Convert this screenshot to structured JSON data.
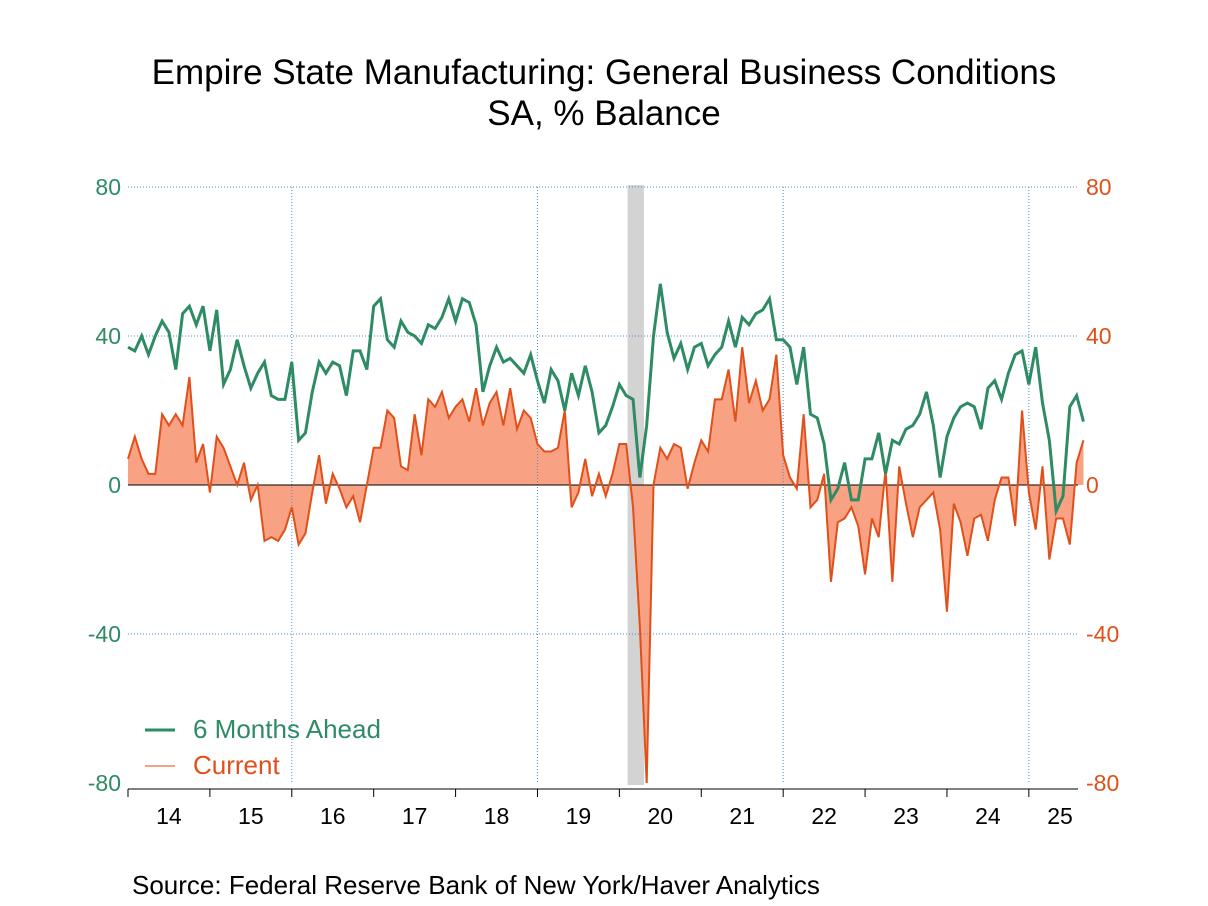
{
  "title": {
    "line1": "Empire State Manufacturing: General Business Conditions",
    "line2": "SA, % Balance"
  },
  "source": "Source:  Federal Reserve Bank of New York/Haver Analytics",
  "colors": {
    "six_months": "#2e8b64",
    "current_line": "#e0501a",
    "current_fill": "#f9a183",
    "recession": "#d3d3d3",
    "grid": "#4a8fd0",
    "left_axis_text": "#2e8b64",
    "right_axis_text": "#e0501a"
  },
  "chart_data": {
    "type": "line",
    "title": "Empire State Manufacturing: General Business Conditions",
    "subtitle": "SA, % Balance",
    "xlabel": "",
    "ylabel": "",
    "ylim": [
      -80,
      80
    ],
    "y_ticks_left": [
      "80",
      "40",
      "0",
      "-40",
      "-80"
    ],
    "y_ticks_right": [
      "80",
      "40",
      "0",
      "-40",
      "-80"
    ],
    "x_ticks": [
      "14",
      "15",
      "16",
      "17",
      "18",
      "19",
      "20",
      "21",
      "22",
      "23",
      "24",
      "25"
    ],
    "x_range": [
      2014.0,
      2025.6
    ],
    "frequency": "monthly",
    "start": "2014-01",
    "recession": {
      "start": 2020.1,
      "end": 2020.3
    },
    "legend": {
      "position": "bottom-left"
    },
    "series": [
      {
        "name": "6 Months Ahead",
        "style": "line",
        "values": [
          37,
          36,
          40,
          35,
          40,
          44,
          41,
          31,
          46,
          48,
          43,
          48,
          36,
          47,
          27,
          31,
          39,
          32,
          26,
          30,
          33,
          24,
          23,
          23,
          33,
          12,
          14,
          25,
          33,
          30,
          33,
          32,
          24,
          36,
          36,
          31,
          48,
          50,
          39,
          37,
          44,
          41,
          40,
          38,
          43,
          42,
          45,
          50,
          44,
          50,
          49,
          43,
          25,
          32,
          37,
          33,
          34,
          32,
          30,
          35,
          28,
          22,
          31,
          28,
          20,
          30,
          24,
          32,
          25,
          14,
          16,
          21,
          27,
          24,
          23,
          2,
          16,
          40,
          54,
          41,
          34,
          38,
          31,
          37,
          38,
          32,
          35,
          37,
          44,
          37,
          45,
          43,
          46,
          47,
          50,
          39,
          39,
          37,
          27,
          37,
          19,
          18,
          11,
          -4,
          -1,
          6,
          -4,
          -4,
          7,
          7,
          14,
          3,
          12,
          11,
          15,
          16,
          19,
          25,
          16,
          2,
          13,
          18,
          21,
          22,
          21,
          15,
          26,
          28,
          23,
          30,
          35,
          36,
          27,
          37,
          22,
          12,
          -7,
          -3,
          21,
          24,
          17
        ]
      },
      {
        "name": "Current",
        "style": "filled-line",
        "values": [
          7,
          13,
          7,
          3,
          3,
          19,
          16,
          19,
          16,
          29,
          6,
          11,
          -2,
          13,
          10,
          5,
          0,
          6,
          -4,
          0,
          -15,
          -14,
          -15,
          -12,
          -6,
          -16,
          -13,
          -2,
          8,
          -5,
          3,
          -1,
          -6,
          -3,
          -10,
          0,
          10,
          10,
          20,
          18,
          5,
          4,
          19,
          8,
          23,
          21,
          25,
          18,
          21,
          23,
          17,
          26,
          16,
          22,
          25,
          16,
          26,
          15,
          20,
          18,
          11,
          9,
          9,
          10,
          20,
          -6,
          -2,
          7,
          -3,
          3,
          -3,
          3,
          11,
          11,
          -6,
          -38,
          -80,
          0,
          10,
          7,
          11,
          10,
          -1,
          6,
          12,
          9,
          23,
          23,
          31,
          17,
          37,
          22,
          28,
          20,
          23,
          35,
          8,
          2,
          -1,
          19,
          -6,
          -4,
          3,
          -26,
          -10,
          -9,
          -6,
          -11,
          -24,
          -9,
          -14,
          4,
          -26,
          5,
          -5,
          -14,
          -6,
          -4,
          -2,
          -12,
          -34,
          -5,
          -10,
          -19,
          -9,
          -8,
          -15,
          -4,
          2,
          2,
          -11,
          20,
          -2,
          -12,
          5,
          -20,
          -9,
          -9,
          -16,
          6,
          12
        ]
      }
    ]
  }
}
